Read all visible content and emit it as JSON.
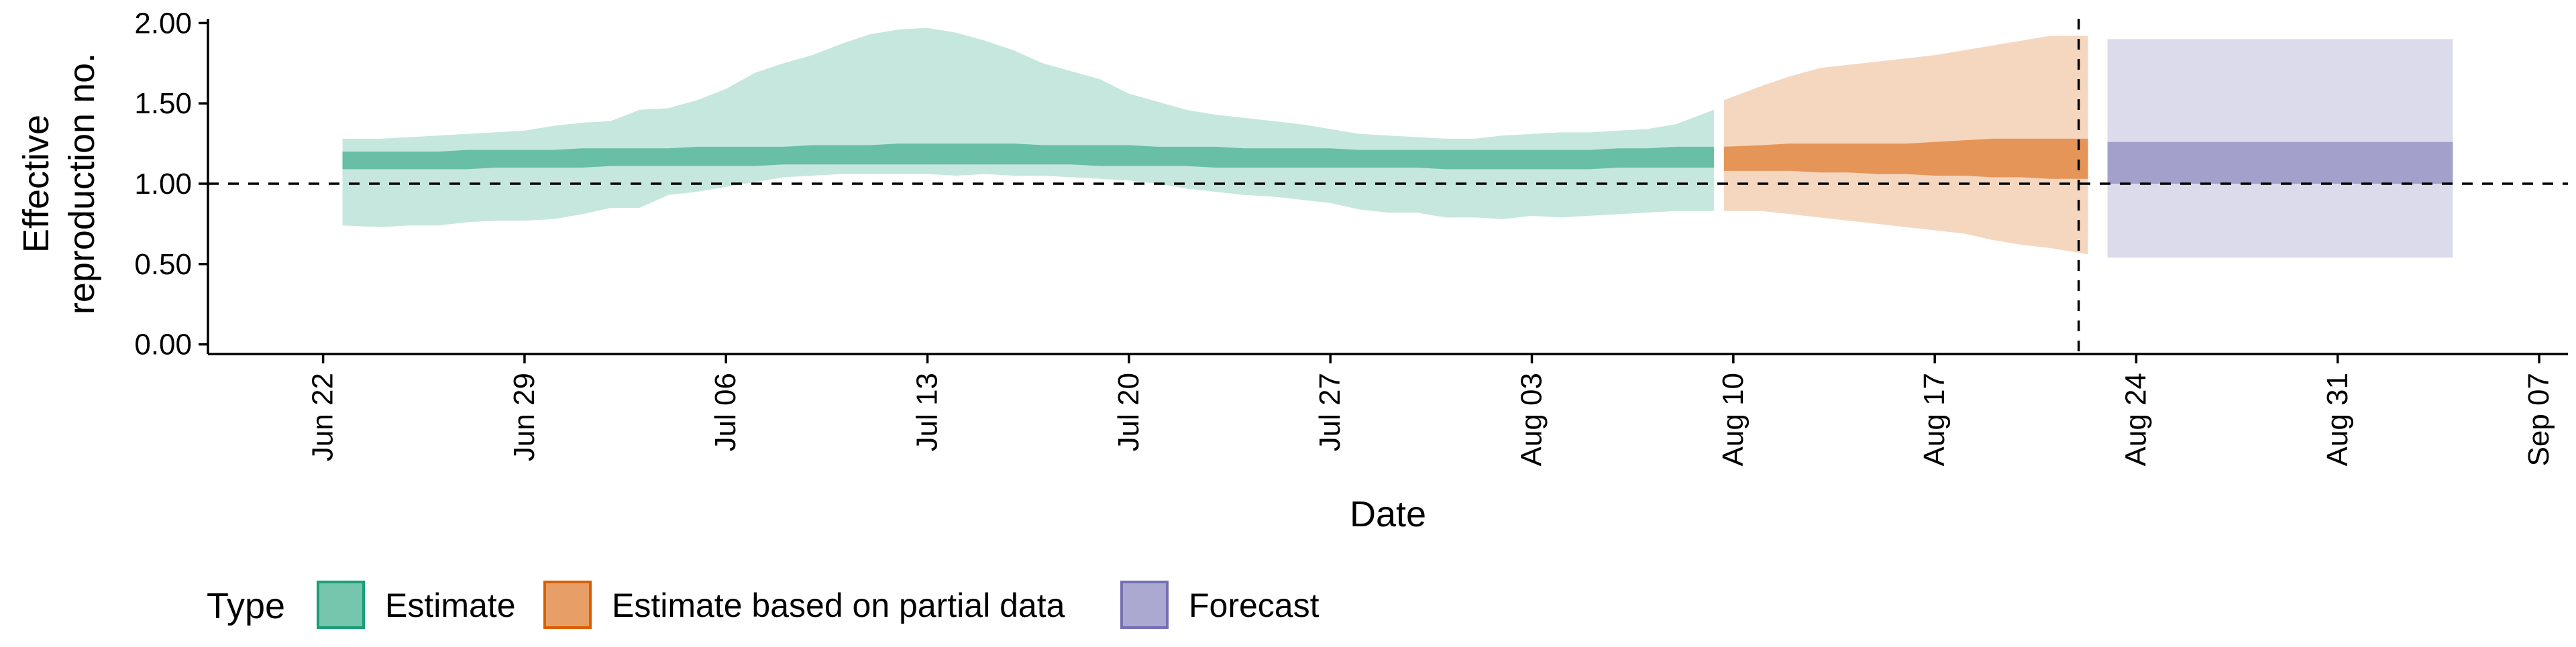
{
  "chart_data": {
    "type": "area",
    "xlabel": "Date",
    "ylabel_lines": [
      "Effective",
      "reproduction no."
    ],
    "ylim": [
      -0.06,
      2.06
    ],
    "xlim": [
      "2020-06-18",
      "2020-09-08"
    ],
    "y_ticks": [
      {
        "value": 0.0,
        "label": "0.00"
      },
      {
        "value": 0.5,
        "label": "0.50"
      },
      {
        "value": 1.0,
        "label": "1.00"
      },
      {
        "value": 1.5,
        "label": "1.50"
      },
      {
        "value": 2.0,
        "label": "2.00"
      }
    ],
    "x_ticks": [
      {
        "date": "2020-06-22",
        "label": "Jun 22"
      },
      {
        "date": "2020-06-29",
        "label": "Jun 29"
      },
      {
        "date": "2020-07-06",
        "label": "Jul 06"
      },
      {
        "date": "2020-07-13",
        "label": "Jul 13"
      },
      {
        "date": "2020-07-20",
        "label": "Jul 20"
      },
      {
        "date": "2020-07-27",
        "label": "Jul 27"
      },
      {
        "date": "2020-08-03",
        "label": "Aug 03"
      },
      {
        "date": "2020-08-10",
        "label": "Aug 10"
      },
      {
        "date": "2020-08-17",
        "label": "Aug 17"
      },
      {
        "date": "2020-08-24",
        "label": "Aug 24"
      },
      {
        "date": "2020-08-31",
        "label": "Aug 31"
      },
      {
        "date": "2020-09-07",
        "label": "Sep 07"
      }
    ],
    "reference_line": {
      "y": 1.0,
      "style": "dashed"
    },
    "vertical_line": {
      "date": "2020-08-22",
      "style": "dashed"
    },
    "grid": false,
    "legend": {
      "position": "bottom-left",
      "title": "Type",
      "items": [
        {
          "label": "Estimate",
          "color": "#1b9e77"
        },
        {
          "label": "Estimate based on partial data",
          "color": "#d95f02"
        },
        {
          "label": "Forecast",
          "color": "#7570b3"
        }
      ]
    },
    "series": [
      {
        "name": "Estimate",
        "color": "#1b9e77",
        "dates": [
          "2020-06-23",
          "2020-06-24",
          "2020-06-25",
          "2020-06-26",
          "2020-06-27",
          "2020-06-28",
          "2020-06-29",
          "2020-06-30",
          "2020-07-01",
          "2020-07-02",
          "2020-07-03",
          "2020-07-04",
          "2020-07-05",
          "2020-07-06",
          "2020-07-07",
          "2020-07-08",
          "2020-07-09",
          "2020-07-10",
          "2020-07-11",
          "2020-07-12",
          "2020-07-13",
          "2020-07-14",
          "2020-07-15",
          "2020-07-16",
          "2020-07-17",
          "2020-07-18",
          "2020-07-19",
          "2020-07-20",
          "2020-07-21",
          "2020-07-22",
          "2020-07-23",
          "2020-07-24",
          "2020-07-25",
          "2020-07-26",
          "2020-07-27",
          "2020-07-28",
          "2020-07-29",
          "2020-07-30",
          "2020-07-31",
          "2020-08-01",
          "2020-08-02",
          "2020-08-03",
          "2020-08-04",
          "2020-08-05",
          "2020-08-06",
          "2020-08-07",
          "2020-08-08",
          "2020-08-09"
        ],
        "outer_lower": [
          0.74,
          0.73,
          0.74,
          0.74,
          0.76,
          0.77,
          0.77,
          0.78,
          0.81,
          0.85,
          0.85,
          0.93,
          0.95,
          0.98,
          1.01,
          1.04,
          1.05,
          1.06,
          1.06,
          1.06,
          1.06,
          1.05,
          1.06,
          1.05,
          1.05,
          1.04,
          1.03,
          1.02,
          1.0,
          0.97,
          0.95,
          0.93,
          0.92,
          0.9,
          0.88,
          0.84,
          0.82,
          0.82,
          0.79,
          0.79,
          0.78,
          0.8,
          0.79,
          0.8,
          0.81,
          0.82,
          0.83,
          0.83
        ],
        "outer_upper": [
          1.28,
          1.28,
          1.29,
          1.3,
          1.31,
          1.32,
          1.33,
          1.36,
          1.38,
          1.39,
          1.46,
          1.47,
          1.52,
          1.59,
          1.69,
          1.75,
          1.8,
          1.87,
          1.93,
          1.96,
          1.97,
          1.94,
          1.89,
          1.83,
          1.75,
          1.7,
          1.65,
          1.56,
          1.51,
          1.46,
          1.43,
          1.41,
          1.39,
          1.37,
          1.34,
          1.31,
          1.3,
          1.29,
          1.28,
          1.28,
          1.3,
          1.31,
          1.32,
          1.32,
          1.33,
          1.34,
          1.37,
          1.46
        ],
        "inner_lower": [
          1.09,
          1.09,
          1.09,
          1.09,
          1.09,
          1.1,
          1.1,
          1.1,
          1.1,
          1.11,
          1.11,
          1.11,
          1.11,
          1.11,
          1.11,
          1.12,
          1.12,
          1.12,
          1.12,
          1.12,
          1.12,
          1.12,
          1.12,
          1.12,
          1.12,
          1.12,
          1.11,
          1.11,
          1.11,
          1.11,
          1.1,
          1.1,
          1.1,
          1.1,
          1.1,
          1.1,
          1.1,
          1.1,
          1.09,
          1.09,
          1.09,
          1.09,
          1.09,
          1.09,
          1.1,
          1.1,
          1.1,
          1.1
        ],
        "inner_upper": [
          1.2,
          1.2,
          1.2,
          1.2,
          1.21,
          1.21,
          1.21,
          1.21,
          1.22,
          1.22,
          1.22,
          1.22,
          1.23,
          1.23,
          1.23,
          1.23,
          1.24,
          1.24,
          1.24,
          1.25,
          1.25,
          1.25,
          1.25,
          1.25,
          1.24,
          1.24,
          1.24,
          1.24,
          1.23,
          1.23,
          1.23,
          1.22,
          1.22,
          1.22,
          1.22,
          1.21,
          1.21,
          1.21,
          1.21,
          1.21,
          1.21,
          1.21,
          1.21,
          1.21,
          1.22,
          1.22,
          1.23,
          1.23
        ]
      },
      {
        "name": "Estimate based on partial data",
        "color": "#d95f02",
        "dates": [
          "2020-08-10",
          "2020-08-11",
          "2020-08-12",
          "2020-08-13",
          "2020-08-14",
          "2020-08-15",
          "2020-08-16",
          "2020-08-17",
          "2020-08-18",
          "2020-08-19",
          "2020-08-20",
          "2020-08-21",
          "2020-08-22"
        ],
        "outer_lower": [
          0.83,
          0.83,
          0.81,
          0.79,
          0.77,
          0.75,
          0.73,
          0.71,
          0.69,
          0.65,
          0.62,
          0.6,
          0.56
        ],
        "outer_upper": [
          1.52,
          1.61,
          1.67,
          1.72,
          1.74,
          1.76,
          1.78,
          1.8,
          1.83,
          1.86,
          1.89,
          1.92,
          1.92
        ],
        "inner_lower": [
          1.08,
          1.08,
          1.08,
          1.07,
          1.07,
          1.06,
          1.06,
          1.05,
          1.05,
          1.04,
          1.04,
          1.03,
          1.03
        ],
        "inner_upper": [
          1.23,
          1.24,
          1.25,
          1.25,
          1.25,
          1.25,
          1.25,
          1.26,
          1.27,
          1.28,
          1.28,
          1.28,
          1.28
        ]
      },
      {
        "name": "Forecast",
        "color": "#7570b3",
        "dates": [
          "2020-08-23",
          "2020-09-04"
        ],
        "outer_lower": [
          0.54,
          0.54
        ],
        "outer_upper": [
          1.9,
          1.9
        ],
        "inner_lower": [
          1.0,
          1.0
        ],
        "inner_upper": [
          1.26,
          1.26
        ]
      }
    ]
  }
}
